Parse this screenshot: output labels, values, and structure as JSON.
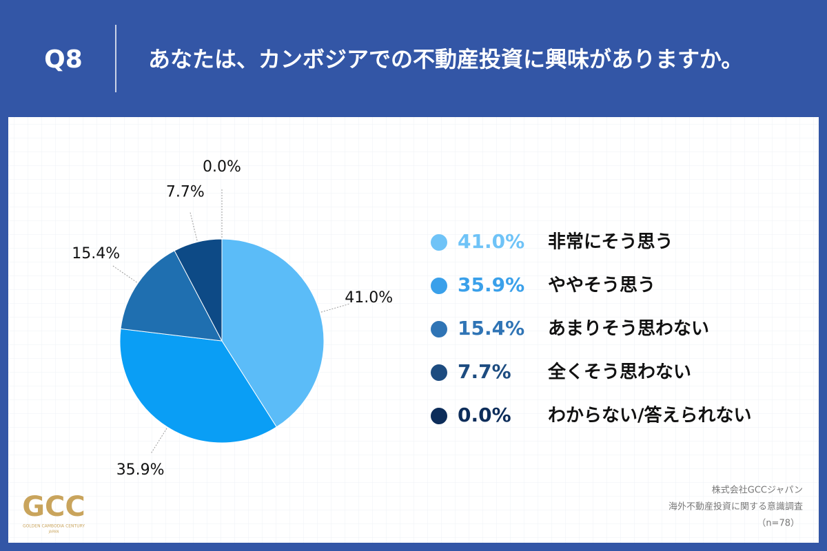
{
  "header": {
    "question": "Q8",
    "title": "あなたは、カンボジアでの不動産投資に興味がありますか。"
  },
  "chart_data": {
    "type": "pie",
    "categories": [
      "非常にそう思う",
      "ややそう思う",
      "あまりそう思わない",
      "全くそう思わない",
      "わからない/答えられない"
    ],
    "values": [
      41.0,
      35.9,
      15.4,
      7.7,
      0.0
    ],
    "value_labels": [
      "41.0%",
      "35.9%",
      "15.4%",
      "7.7%",
      "0.0%"
    ],
    "colors": [
      "#5bbcf8",
      "#0a9ef5",
      "#1f6fb0",
      "#0d4a86",
      "#0a2f5e"
    ],
    "legend_colors": [
      "#6fc3f7",
      "#3aa0ea",
      "#2f74b5",
      "#1d4c80",
      "#0d2d5a"
    ],
    "legend": "right"
  },
  "source": {
    "lines": [
      "株式会社GCCジャパン",
      "海外不動産投資に関する意識調査",
      "（n=78）"
    ]
  },
  "logo": {
    "mark": "GCC",
    "name": "GOLDEN CAMBODIA CENTURY",
    "sub": "JAPAN"
  }
}
